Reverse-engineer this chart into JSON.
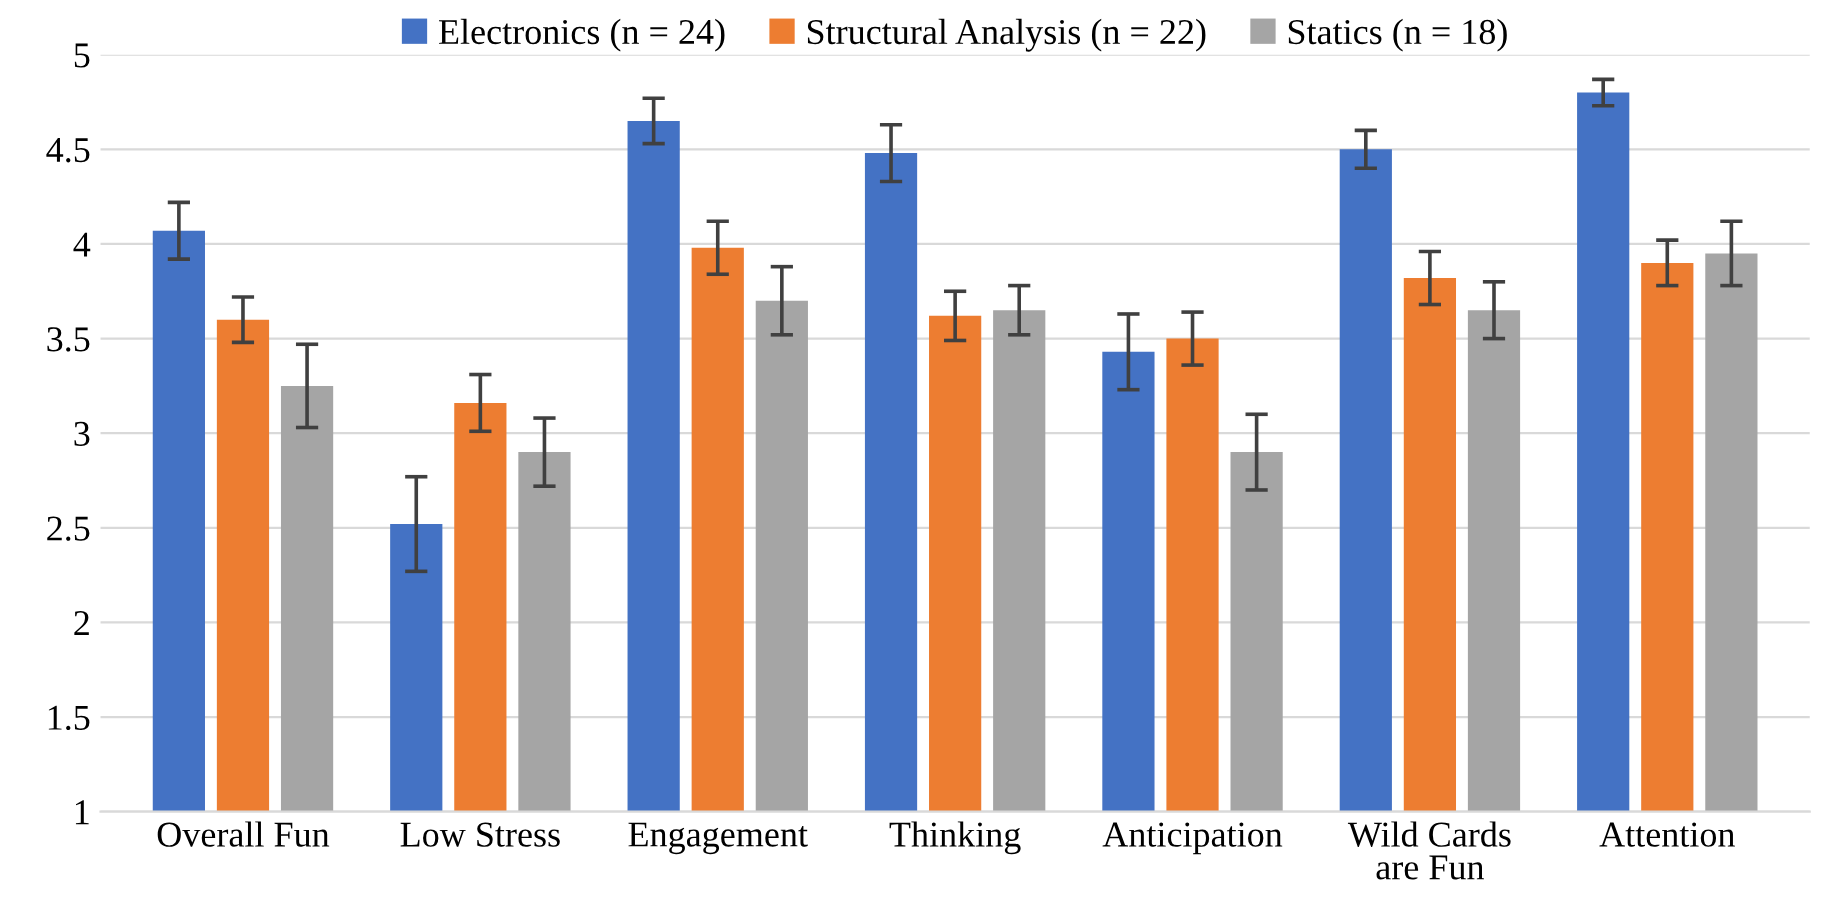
{
  "chart_data": {
    "type": "bar",
    "categories": [
      "Overall Fun",
      "Low Stress",
      "Engagement",
      "Thinking",
      "Anticipation",
      "Wild Cards are Fun",
      "Attention"
    ],
    "series": [
      {
        "name": "Electronics (n = 24)",
        "color": "#4472c4",
        "values": [
          4.07,
          2.52,
          4.65,
          4.48,
          3.43,
          4.5,
          4.8
        ],
        "errors": [
          0.15,
          0.25,
          0.12,
          0.15,
          0.2,
          0.1,
          0.07
        ]
      },
      {
        "name": "Structural Analysis (n = 22)",
        "color": "#ed7d31",
        "values": [
          3.6,
          3.16,
          3.98,
          3.62,
          3.5,
          3.82,
          3.9
        ],
        "errors": [
          0.12,
          0.15,
          0.14,
          0.13,
          0.14,
          0.14,
          0.12
        ]
      },
      {
        "name": "Statics (n = 18)",
        "color": "#a5a5a5",
        "values": [
          3.25,
          2.9,
          3.7,
          3.65,
          2.9,
          3.65,
          3.95
        ],
        "errors": [
          0.22,
          0.18,
          0.18,
          0.13,
          0.2,
          0.15,
          0.17
        ]
      }
    ],
    "ylim": [
      1,
      5
    ],
    "yticks": [
      1,
      1.5,
      2,
      2.5,
      3,
      3.5,
      4,
      4.5,
      5
    ],
    "grid": "y",
    "legend": "top"
  }
}
